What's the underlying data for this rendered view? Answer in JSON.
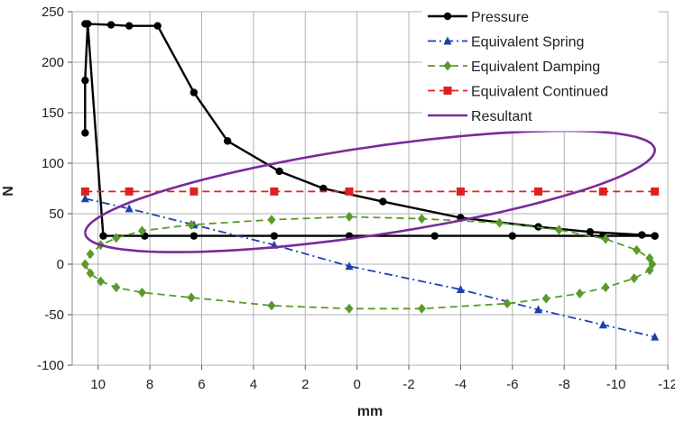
{
  "chart_data": {
    "type": "line",
    "xlabel": "mm",
    "ylabel": "N",
    "xlim": [
      11,
      -12
    ],
    "ylim": [
      -100,
      250
    ],
    "x_ticks": [
      10,
      8,
      6,
      4,
      2,
      0,
      -2,
      -4,
      -6,
      -8,
      -10,
      -12
    ],
    "y_ticks": [
      -100,
      -50,
      0,
      50,
      100,
      150,
      200,
      250
    ],
    "x_tick_labels": [
      "10",
      "8",
      "6",
      "4",
      "2",
      "0",
      "-2",
      "-4",
      "-6",
      "-8",
      "-10",
      "-12"
    ],
    "y_tick_labels": [
      "-100",
      "-50",
      "0",
      "50",
      "100",
      "150",
      "200",
      "250"
    ],
    "grid": true,
    "legend_position": "top-right",
    "series": [
      {
        "name": "Pressure",
        "color": "#000000",
        "marker": "circle",
        "line": "solid",
        "x": [
          10.5,
          10.5,
          10.4,
          9.8,
          8.2,
          6.3,
          3.2,
          0.3,
          -3.0,
          -6.0,
          -9.5,
          -11.5,
          -11.5,
          -11.0,
          -9.0,
          -7.0,
          -4.0,
          -1.0,
          1.3,
          3.0,
          5.0,
          6.3,
          7.7,
          8.8,
          9.5,
          10.5
        ],
        "y": [
          130,
          182,
          238,
          28,
          28,
          28,
          28,
          28,
          28,
          28,
          28,
          28,
          28,
          29,
          32,
          37,
          46,
          62,
          75,
          92,
          122,
          170,
          236,
          236,
          237,
          238
        ]
      },
      {
        "name": "Equivalent Spring",
        "color": "#1f3fb0",
        "marker": "triangle",
        "line": "dashdot",
        "x": [
          10.5,
          8.8,
          6.3,
          3.2,
          0.3,
          -4.0,
          -7.0,
          -9.5,
          -11.5
        ],
        "y": [
          65,
          55,
          39,
          19,
          -2,
          -25,
          -45,
          -60,
          -72
        ]
      },
      {
        "name": "Equivalent Damping",
        "color": "#5a9a2a",
        "marker": "diamond",
        "line": "dashed",
        "x": [
          10.5,
          10.3,
          9.9,
          9.3,
          8.3,
          6.4,
          3.3,
          0.3,
          -2.5,
          -5.8,
          -7.3,
          -8.6,
          -9.6,
          -10.7,
          -11.3,
          -11.4,
          -11.3,
          -10.8,
          -9.6,
          -7.8,
          -5.5,
          -2.5,
          0.3,
          3.3,
          6.4,
          8.3,
          9.3,
          9.9,
          10.3,
          10.5
        ],
        "y": [
          0,
          -9,
          -17,
          -23,
          -28,
          -33,
          -41,
          -44,
          -44,
          -39,
          -34,
          -29,
          -23,
          -14,
          -6,
          0,
          6,
          14,
          25,
          34,
          41,
          45,
          47,
          44,
          39,
          33,
          26,
          19,
          10,
          0
        ]
      },
      {
        "name": "Equivalent Continued",
        "color": "#e02020",
        "marker": "square",
        "line": "dashed",
        "x": [
          10.5,
          8.8,
          6.3,
          3.2,
          0.3,
          -4.0,
          -7.0,
          -9.5,
          -11.5
        ],
        "y": [
          72,
          72,
          72,
          72,
          72,
          72,
          72,
          72,
          72
        ]
      },
      {
        "name": "Resultant",
        "color": "#7a2a9a",
        "marker": "none",
        "line": "solid",
        "ellipse": {
          "center_x": -0.5,
          "center_y": 72,
          "semi_axis_x": 11,
          "semi_axis_y": 44,
          "tilt": -25
        }
      }
    ]
  }
}
